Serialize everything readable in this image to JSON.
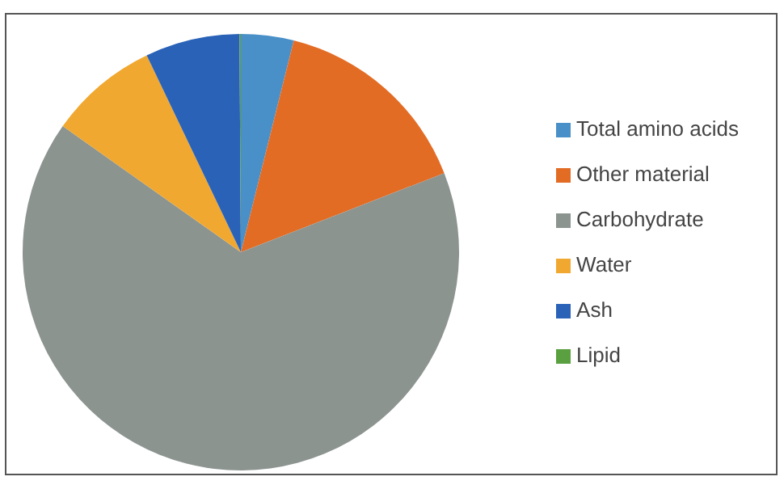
{
  "chart_data": {
    "type": "pie",
    "categories": [
      "Total amino acids",
      "Other material",
      "Carbohydrate",
      "Water",
      "Ash",
      "Lipid"
    ],
    "values": [
      3.9,
      15.2,
      65.7,
      8.1,
      7.0,
      0.1
    ],
    "colors": [
      "#4a90c8",
      "#e36c25",
      "#8c9490",
      "#f0a830",
      "#2a62b8",
      "#5aa040"
    ],
    "legend": "right"
  }
}
